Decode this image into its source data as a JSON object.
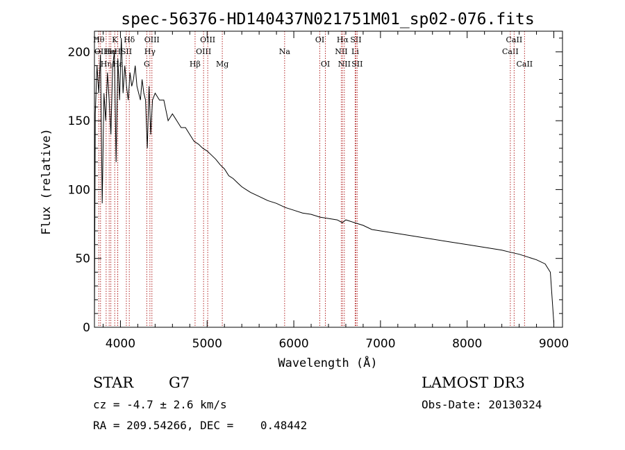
{
  "chart_data": {
    "type": "line",
    "title": "spec-56376-HD140437N021751M01_sp02-076.fits",
    "xlabel": "Wavelength (Å)",
    "ylabel": "Flux (relative)",
    "xlim": [
      3700,
      9100
    ],
    "ylim": [
      0,
      2150
    ],
    "x_ticks": [
      4000,
      5000,
      6000,
      7000,
      8000,
      9000
    ],
    "x_tick_labels": [
      "4000",
      "5000",
      "6000",
      "7000",
      "8000",
      "9000"
    ],
    "y_ticks": [
      0,
      500,
      1000,
      1500,
      2000
    ],
    "y_tick_labels": [
      "0",
      "50",
      "100",
      "150",
      "200"
    ],
    "grid": false,
    "legend": "none",
    "line_color": "#000000",
    "marker_color": "#b22222",
    "series": [
      {
        "name": "spectrum",
        "x": [
          3700,
          3710,
          3730,
          3750,
          3770,
          3790,
          3810,
          3830,
          3850,
          3870,
          3890,
          3910,
          3930,
          3950,
          3970,
          3990,
          4010,
          4030,
          4050,
          4070,
          4090,
          4110,
          4130,
          4150,
          4170,
          4190,
          4210,
          4230,
          4250,
          4270,
          4290,
          4310,
          4330,
          4350,
          4370,
          4400,
          4450,
          4500,
          4550,
          4600,
          4650,
          4700,
          4750,
          4800,
          4850,
          4900,
          4950,
          5000,
          5050,
          5100,
          5150,
          5200,
          5250,
          5300,
          5350,
          5400,
          5450,
          5500,
          5600,
          5700,
          5800,
          5900,
          6000,
          6100,
          6200,
          6300,
          6400,
          6500,
          6560,
          6600,
          6700,
          6800,
          6900,
          7000,
          7200,
          7400,
          7600,
          7800,
          8000,
          8200,
          8400,
          8500,
          8600,
          8700,
          8800,
          8900,
          8960,
          9000
        ],
        "y": [
          50,
          1550,
          1900,
          1700,
          1980,
          900,
          1700,
          1500,
          1850,
          1650,
          1400,
          1900,
          2000,
          1200,
          1950,
          1650,
          2100,
          1700,
          1900,
          1750,
          1650,
          1850,
          1750,
          1800,
          1900,
          1750,
          1700,
          1650,
          1800,
          1700,
          1650,
          1300,
          1750,
          1400,
          1650,
          1700,
          1650,
          1650,
          1500,
          1550,
          1500,
          1450,
          1450,
          1400,
          1350,
          1330,
          1300,
          1280,
          1250,
          1220,
          1180,
          1150,
          1100,
          1080,
          1050,
          1020,
          1000,
          980,
          950,
          920,
          900,
          870,
          850,
          830,
          820,
          800,
          790,
          780,
          760,
          780,
          760,
          740,
          710,
          700,
          680,
          660,
          640,
          620,
          600,
          580,
          560,
          545,
          530,
          510,
          490,
          460,
          400,
          30
        ]
      }
    ],
    "line_markers": [
      {
        "x": 3750,
        "label": "Hθ",
        "row": 0
      },
      {
        "x": 3770,
        "label": "OII",
        "row": 1
      },
      {
        "x": 3835,
        "label": "Hη",
        "row": 2
      },
      {
        "x": 3870,
        "label": "He",
        "row": 1
      },
      {
        "x": 3889,
        "label": "He",
        "row": 1
      },
      {
        "x": 3934,
        "label": "K",
        "row": 0
      },
      {
        "x": 3968,
        "label": "H",
        "row": 1
      },
      {
        "x": 3969,
        "label": "Hε",
        "row": 2
      },
      {
        "x": 4068,
        "label": "SII",
        "row": 1
      },
      {
        "x": 4102,
        "label": "Hδ",
        "row": 0
      },
      {
        "x": 4304,
        "label": "G",
        "row": 2
      },
      {
        "x": 4340,
        "label": "Hγ",
        "row": 1
      },
      {
        "x": 4363,
        "label": "OIII",
        "row": 0
      },
      {
        "x": 4861,
        "label": "Hβ",
        "row": 2
      },
      {
        "x": 4959,
        "label": "OIII",
        "row": 1
      },
      {
        "x": 5007,
        "label": "OIII",
        "row": 0
      },
      {
        "x": 5175,
        "label": "Mg",
        "row": 2
      },
      {
        "x": 5894,
        "label": "Na",
        "row": 1
      },
      {
        "x": 6300,
        "label": "OI",
        "row": 0
      },
      {
        "x": 6364,
        "label": "OI",
        "row": 2
      },
      {
        "x": 6548,
        "label": "NII",
        "row": 1
      },
      {
        "x": 6563,
        "label": "Hα",
        "row": 0
      },
      {
        "x": 6583,
        "label": "NII",
        "row": 2
      },
      {
        "x": 6708,
        "label": "Li",
        "row": 1
      },
      {
        "x": 6716,
        "label": "SII",
        "row": 0
      },
      {
        "x": 6731,
        "label": "SII",
        "row": 2
      },
      {
        "x": 8498,
        "label": "CaII",
        "row": 1
      },
      {
        "x": 8542,
        "label": "CaII",
        "row": 0
      },
      {
        "x": 8662,
        "label": "CaII",
        "row": 2
      }
    ]
  },
  "info": {
    "class_label": "STAR",
    "subclass": "G7",
    "cz": "cz = -4.7 ± 2.6 km/s",
    "radec": "RA = 209.54266, DEC =    0.48442",
    "survey": "LAMOST DR3",
    "obs_date": "Obs-Date: 20130324"
  }
}
